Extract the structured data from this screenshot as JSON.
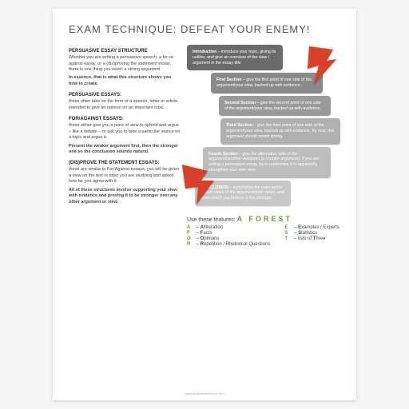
{
  "title": "EXAM TECHNIQUE: DEFEAT YOUR ENEMY!",
  "left": {
    "h1": "PERSUASIVE ESSAY STRUCTURE",
    "p1": "Whether you are writing a persuasive speech, a for-or-against essay, or a (dis)proving the statement essay, there is one thing you need: a strong argument.",
    "p1b": "In essence, that is what this structure shows you how to create.",
    "h2": "PERSUASIVE ESSAYS:",
    "p2": "these often take on the form of a speech, letter or article, intended to give an opinion on an important topic.",
    "h3": "FOR/AGAINST ESSAYS:",
    "p3": "these either give you a point of view to uphold and argue – like a debate – or ask you to take a particular stance on a topic and argue it.",
    "p3b": "Present the weaker argument first, then the stronger one so the conclusion sounds natural.",
    "h4": "(DIS)PROVE THE STATEMENT ESSAYS:",
    "p4": "these are similar to For/Against essays, you will be given a view on the text or topic you are studying and asked how far you agree with it.",
    "p5": "All of these structures involve supporting your view with evidence and proving it to be stronger over any other argument or view."
  },
  "boxes": [
    {
      "cls": "b0",
      "color": "#6b6b6b",
      "title": "Introduction",
      "body": " – introduce your topic, giving its outline, and give an overview of the view / argument in the essay title"
    },
    {
      "cls": "b1",
      "color": "#8a8a8a",
      "title": "First Section",
      "body": " – give the first point of one side of the argument/your view, backed up with evidence."
    },
    {
      "cls": "b2",
      "color": "#9a9a9a",
      "title": "Second Section",
      "body": " – give the second point of one side of the argument/your view, backed up with evidence."
    },
    {
      "cls": "b3",
      "color": "#b0b0b0",
      "title": "Third Section",
      "body": " – give the third point of one side of the argument/your view, backed up with evidence. By now, this argument should sound strong."
    },
    {
      "cls": "b4",
      "color": "#bdbdbd",
      "title": "Fourth Section",
      "body": " – give the alternative side of the argument/another viewpoint (a counter-argument). If you are writing a persuasive essay, try to undermine it to apparently strengthen your own view."
    },
    {
      "cls": "b5",
      "color": "#c7c7c7",
      "title": "CONCLUSION",
      "body": " – summarise the main points of both sides of the argument/both views, and show which you believe is the stronger."
    }
  ],
  "arrow_color": "#d8402a",
  "features": {
    "heading": "Use these features:",
    "aforest": "A FOREST",
    "col1": [
      {
        "k": "A",
        "kc": "#6a9a3a",
        "v": " – Alliteration",
        "b": "A"
      },
      {
        "k": "F",
        "kc": "#6a9a3a",
        "v": " – Facts",
        "b": "F"
      },
      {
        "k": "O",
        "kc": "#6a9a3a",
        "v": " – Opinions",
        "b": "O"
      },
      {
        "k": "R",
        "kc": "#6a9a3a",
        "v": " – Repetition / Rhetorical Questions",
        "b": "R"
      }
    ],
    "col2": [
      {
        "k": "E",
        "kc": "#6a9a3a",
        "v": " – Examples / Experts",
        "b": "E"
      },
      {
        "k": "S",
        "kc": "#6a9a3a",
        "v": " – Statistics",
        "b": "S"
      },
      {
        "k": "T",
        "kc": "#6a9a3a",
        "v": " – lists of Three",
        "b": "T"
      }
    ]
  },
  "footer": "www.litsandlearnfiction.com"
}
